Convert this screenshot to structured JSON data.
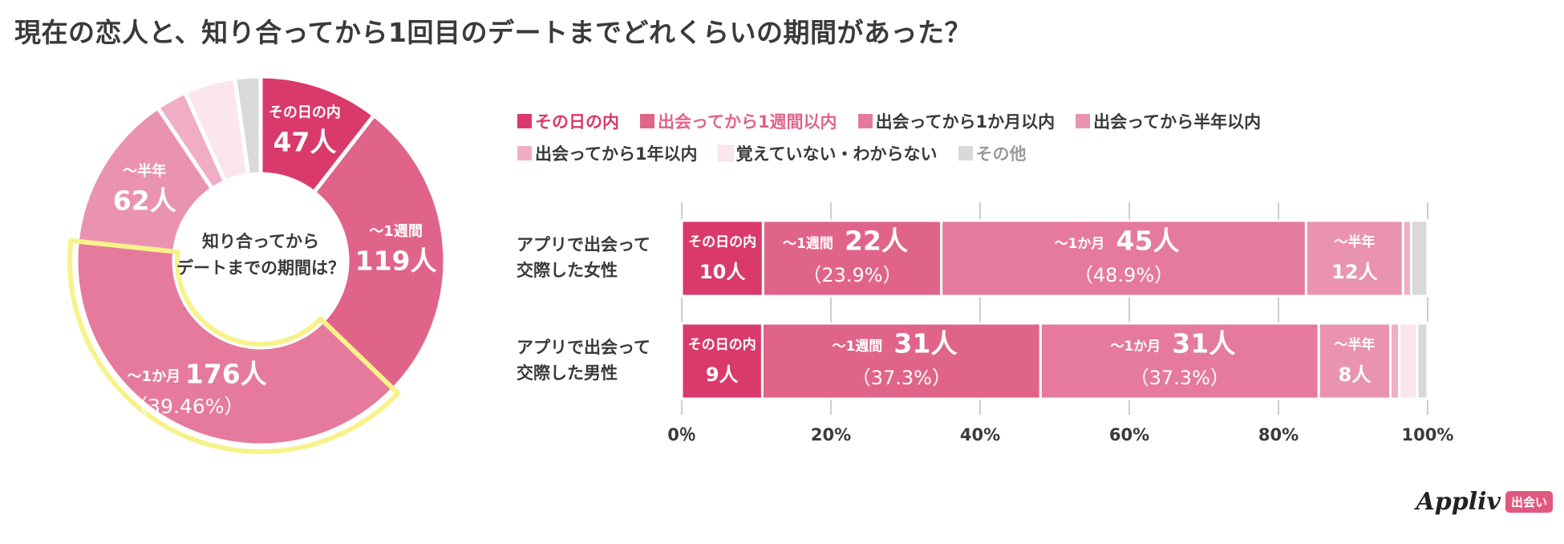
{
  "title": "現在の恋人と、知り合ってから1回目のデートまでどれくらいの期間があった？",
  "colors": {
    "c1": "#d93a6b",
    "c2": "#e06489",
    "c3": "#e57a9c",
    "c4": "#ea93b1",
    "c5": "#efaec6",
    "c6": "#fbe6ee",
    "c7": "#d9d9d9",
    "highlight": "#f7f28a"
  },
  "legend": [
    {
      "label": "その日の内",
      "color": "#d93a6b",
      "text_color": "#d93a6b"
    },
    {
      "label": "出会ってから1週間以内",
      "color": "#e06489",
      "text_color": "#e06489"
    },
    {
      "label": "出会ってから1か月以内",
      "color": "#e57a9c",
      "text_color": "#3a3a3a"
    },
    {
      "label": "出会ってから半年以内",
      "color": "#ea93b1",
      "text_color": "#3a3a3a"
    },
    {
      "label": "出会ってから1年以内",
      "color": "#efaec6",
      "text_color": "#3a3a3a"
    },
    {
      "label": "覚えていない・わからない",
      "color": "#fbe6ee",
      "text_color": "#3a3a3a"
    },
    {
      "label": "その他",
      "color": "#d9d9d9",
      "text_color": "#9a9a9a"
    }
  ],
  "chart_data": [
    {
      "type": "pie",
      "center_label": [
        "知り合ってから",
        "デートまでの期間は？"
      ],
      "slices": [
        {
          "name": "その日の内",
          "short": "その日の内",
          "value": 47,
          "label": "47人",
          "color": "#d93a6b"
        },
        {
          "name": "出会ってから1週間以内",
          "short": "〜1週間",
          "value": 119,
          "label": "119人",
          "color": "#e06489"
        },
        {
          "name": "出会ってから1か月以内",
          "short": "〜1か月",
          "value": 176,
          "label": "176人",
          "pct_label": "（39.46%）",
          "color": "#e57a9c",
          "highlight": true
        },
        {
          "name": "出会ってから半年以内",
          "short": "〜半年",
          "value": 62,
          "label": "62人",
          "color": "#ea93b1"
        },
        {
          "name": "出会ってから1年以内",
          "value": 12,
          "color": "#efaec6"
        },
        {
          "name": "覚えていない・わからない",
          "value": 20,
          "color": "#fbe6ee"
        },
        {
          "name": "その他",
          "value": 10,
          "color": "#d9d9d9"
        }
      ]
    },
    {
      "type": "bar",
      "orientation": "horizontal",
      "stacked": true,
      "categories": [
        "アプリで出会って\n交際した女性",
        "アプリで出会って\n交際した男性"
      ],
      "xlim": [
        0,
        100
      ],
      "xticks": [
        "0％",
        "20%",
        "40%",
        "60%",
        "80%",
        "100%"
      ],
      "series": [
        {
          "name": "その日の内",
          "short": "その日の内",
          "color": "#d93a6b",
          "values": [
            10.9,
            10.8
          ],
          "counts": [
            "10人",
            "9人"
          ]
        },
        {
          "name": "出会ってから1週間以内",
          "short": "〜1週間",
          "color": "#e06489",
          "values": [
            23.9,
            37.3
          ],
          "counts": [
            "22人",
            "31人"
          ],
          "pcts": [
            "（23.9%）",
            "（37.3%）"
          ]
        },
        {
          "name": "出会ってから1か月以内",
          "short": "〜1か月",
          "color": "#e57a9c",
          "values": [
            48.9,
            37.3
          ],
          "counts": [
            "45人",
            "31人"
          ],
          "pcts": [
            "（48.9%）",
            "（37.3%）"
          ]
        },
        {
          "name": "出会ってから半年以内",
          "short": "〜半年",
          "color": "#ea93b1",
          "values": [
            13.0,
            9.6
          ],
          "counts": [
            "12人",
            "8人"
          ]
        },
        {
          "name": "出会ってから1年以内",
          "color": "#efaec6",
          "values": [
            1.1,
            1.2
          ]
        },
        {
          "name": "覚えていない・わからない",
          "color": "#fbe6ee",
          "values": [
            0,
            2.4
          ]
        },
        {
          "name": "その他",
          "color": "#d9d9d9",
          "values": [
            2.2,
            1.4
          ]
        }
      ]
    }
  ],
  "logo": {
    "word": "Appliv",
    "badge": "出会い"
  }
}
